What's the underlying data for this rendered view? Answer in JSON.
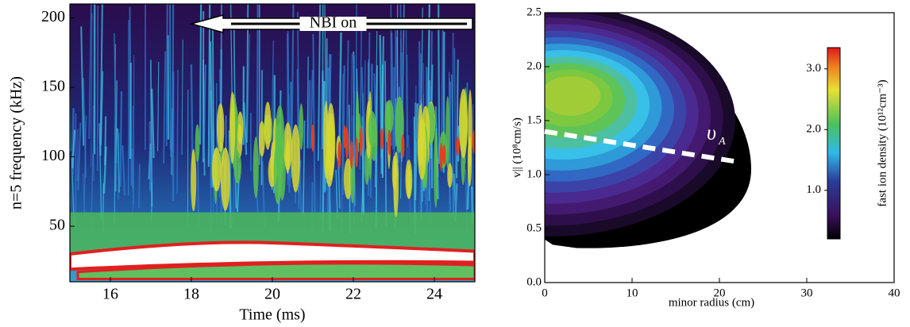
{
  "chart_data": [
    {
      "type": "spectrogram",
      "x_label": "Time (ms)",
      "y_label": "n=5 frequency (kHz)",
      "xlim": [
        15,
        25
      ],
      "xticks": [
        16,
        18,
        20,
        22,
        24
      ],
      "ylim": [
        10,
        210
      ],
      "yticks": [
        50,
        100,
        150,
        200
      ],
      "annotation": {
        "text": "NBI on",
        "xrange": [
          18,
          25
        ]
      }
    },
    {
      "type": "contour",
      "x_label": "minor radius (cm)",
      "y_label": "v|| (10⁸cm/s)",
      "colorbar_label": "fast ion density  (10¹²cm⁻³)",
      "xlim": [
        0,
        40
      ],
      "xticks": [
        0,
        10,
        20,
        30,
        40
      ],
      "ylim": [
        0,
        2.5
      ],
      "yticks": [
        {
          "value": 0,
          "label": "0.0"
        },
        0.5,
        {
          "value": 1,
          "label": "1.0"
        },
        1.5,
        {
          "value": 2,
          "label": "2.0"
        },
        2.5
      ],
      "clim": [
        0.2,
        3.35
      ],
      "cticks": [
        {
          "value": 1,
          "label": "1.0"
        },
        {
          "value": 2,
          "label": "2.0"
        },
        {
          "value": 3,
          "label": "3.0"
        }
      ],
      "va_line": {
        "x": [
          0,
          22
        ],
        "y": [
          1.4,
          1.12
        ],
        "symbol": "υ",
        "subscript": "A"
      }
    }
  ]
}
